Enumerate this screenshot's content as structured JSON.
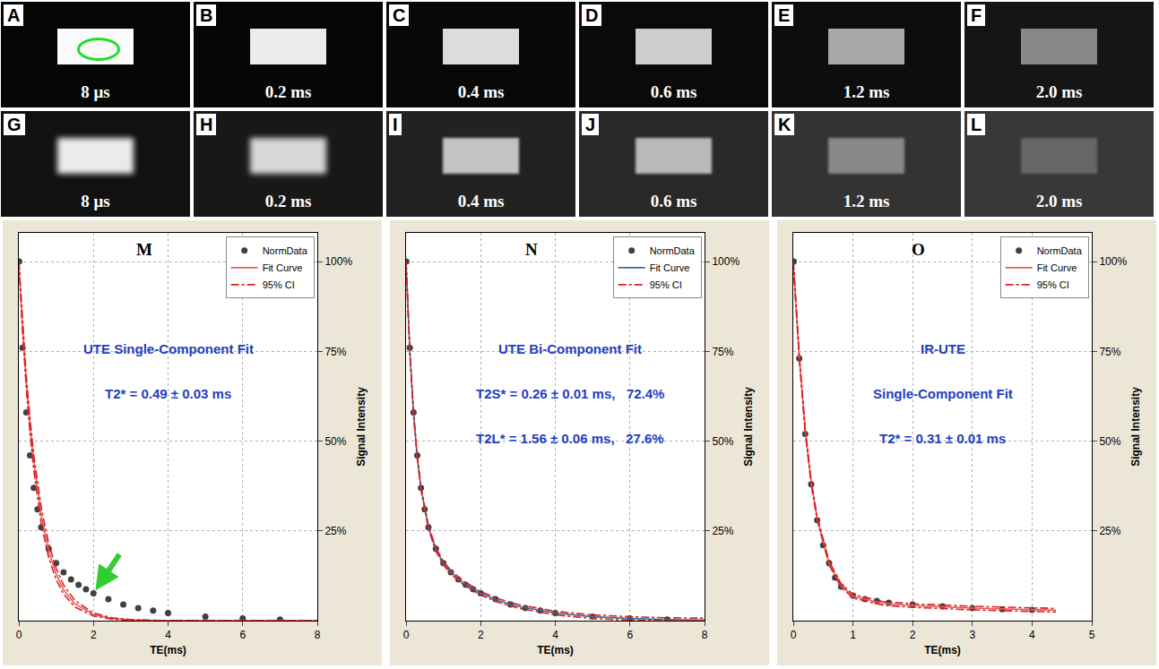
{
  "images": [
    {
      "panel": "A",
      "te": "8 μs"
    },
    {
      "panel": "B",
      "te": "0.2 ms"
    },
    {
      "panel": "C",
      "te": "0.4 ms"
    },
    {
      "panel": "D",
      "te": "0.6 ms"
    },
    {
      "panel": "E",
      "te": "1.2 ms"
    },
    {
      "panel": "F",
      "te": "2.0 ms"
    },
    {
      "panel": "G",
      "te": "8 μs"
    },
    {
      "panel": "H",
      "te": "0.2 ms"
    },
    {
      "panel": "I",
      "te": "0.4 ms"
    },
    {
      "panel": "J",
      "te": "0.6 ms"
    },
    {
      "panel": "K",
      "te": "1.2 ms"
    },
    {
      "panel": "L",
      "te": "2.0 ms"
    }
  ],
  "chart_data": [
    {
      "type": "scatter",
      "panel": "M",
      "annotations": [
        "UTE Single-Component Fit",
        "T2* = 0.49 ± 0.03 ms"
      ],
      "x_label": "TE(ms)",
      "y_label": "Signal Intensity",
      "xlim": [
        0,
        8
      ],
      "xticks": [
        0,
        2,
        4,
        6,
        8
      ],
      "ylim": [
        0,
        108
      ],
      "yticks": [
        {
          "value": 25,
          "label": "25%"
        },
        {
          "value": 50,
          "label": "50%"
        },
        {
          "value": 75,
          "label": "75%"
        },
        {
          "value": 100,
          "label": "100%"
        }
      ],
      "grid": true,
      "legend": "top right",
      "series": [
        {
          "name": "NormData",
          "type": "scatter",
          "marker": "circle",
          "color": "#404040",
          "x": [
            0.008,
            0.1,
            0.2,
            0.3,
            0.4,
            0.5,
            0.6,
            0.8,
            1.0,
            1.2,
            1.4,
            1.6,
            1.8,
            2.0,
            2.4,
            2.8,
            3.2,
            3.6,
            4.0,
            5.0,
            6.0,
            7.0
          ],
          "values": [
            100,
            76,
            58,
            46,
            37,
            31,
            26,
            20,
            16,
            13.5,
            11.5,
            10,
            8.7,
            7.6,
            6,
            4.5,
            3.5,
            2.8,
            2.1,
            1.1,
            0.6,
            0.3
          ]
        },
        {
          "name": "Fit Curve",
          "type": "line",
          "line_style": "solid",
          "color": "#e06060",
          "x": [
            0,
            0.1,
            0.2,
            0.3,
            0.4,
            0.6,
            0.8,
            1.0,
            1.2,
            1.5,
            2,
            2.5,
            3,
            4,
            5,
            6,
            7,
            8
          ],
          "values": [
            100,
            81.5,
            66.5,
            54.2,
            44.2,
            29.4,
            19.5,
            13.0,
            8.6,
            4.7,
            1.7,
            0.6,
            0.2,
            0,
            0,
            0,
            0,
            0
          ]
        },
        {
          "name": "95% CI",
          "type": "line",
          "line_style": "dashdot",
          "color": "#e02020",
          "x": [
            0,
            0.1,
            0.2,
            0.3,
            0.4,
            0.6,
            0.8,
            1.0,
            1.2,
            1.5,
            2,
            2.5,
            3,
            4,
            5,
            6,
            7,
            8
          ],
          "values": [
            100,
            82.5,
            68.1,
            56.2,
            46.3,
            31.5,
            21.5,
            14.6,
            9.9,
            5.6,
            2.1,
            0.8,
            0.3,
            0,
            0,
            0,
            0,
            0
          ]
        },
        {
          "name": "95% CI",
          "type": "line",
          "line_style": "dashdot",
          "color": "#e02020",
          "x": [
            0,
            0.1,
            0.2,
            0.3,
            0.4,
            0.6,
            0.8,
            1.0,
            1.2,
            1.5,
            2,
            2.5,
            3,
            4,
            5,
            6,
            7,
            8
          ],
          "values": [
            100,
            80.5,
            64.7,
            52.1,
            41.9,
            27.1,
            17.6,
            11.4,
            7.4,
            3.8,
            1.3,
            0.4,
            0.1,
            0,
            0,
            0,
            0,
            0
          ]
        }
      ]
    },
    {
      "type": "scatter",
      "panel": "N",
      "annotations": [
        "UTE Bi-Component Fit",
        "T2S* = 0.26 ± 0.01 ms,   72.4%",
        "T2L* = 1.56 ± 0.06 ms,   27.6%"
      ],
      "x_label": "TE(ms)",
      "y_label": "Signal Intensity",
      "xlim": [
        0,
        8
      ],
      "xticks": [
        0,
        2,
        4,
        6,
        8
      ],
      "ylim": [
        0,
        108
      ],
      "yticks": [
        {
          "value": 25,
          "label": "25%"
        },
        {
          "value": 50,
          "label": "50%"
        },
        {
          "value": 75,
          "label": "75%"
        },
        {
          "value": 100,
          "label": "100%"
        }
      ],
      "grid": true,
      "legend": "top right",
      "series": [
        {
          "name": "NormData",
          "type": "scatter",
          "marker": "circle",
          "color": "#404040",
          "x": [
            0.008,
            0.1,
            0.2,
            0.3,
            0.4,
            0.5,
            0.6,
            0.8,
            1.0,
            1.2,
            1.4,
            1.6,
            1.8,
            2.0,
            2.4,
            2.8,
            3.2,
            3.6,
            4.0,
            5.0,
            6.0,
            7.0
          ],
          "values": [
            100,
            76,
            58,
            46,
            37,
            31,
            26,
            20,
            16,
            13.5,
            11.5,
            10,
            8.7,
            7.6,
            6,
            4.5,
            3.5,
            2.8,
            2.1,
            1.1,
            0.6,
            0.3
          ]
        },
        {
          "name": "Fit Curve",
          "type": "line",
          "line_style": "solid",
          "color": "#3070a0",
          "x": [
            0,
            0.1,
            0.2,
            0.3,
            0.4,
            0.6,
            0.8,
            1.0,
            1.2,
            1.5,
            2,
            2.5,
            3,
            4,
            5,
            6,
            7,
            8
          ],
          "values": [
            100,
            75.2,
            57.8,
            45.6,
            36.9,
            26.0,
            19.8,
            16.0,
            13.5,
            10.8,
            7.6,
            5.5,
            4.0,
            2.1,
            1.1,
            0.6,
            0.3,
            0.2
          ]
        },
        {
          "name": "95% CI",
          "type": "line",
          "line_style": "dashdot",
          "color": "#e02020",
          "x": [
            0,
            0.1,
            0.2,
            0.3,
            0.4,
            0.6,
            0.8,
            1.0,
            1.2,
            1.5,
            2,
            2.5,
            3,
            4,
            5,
            6,
            7,
            8
          ],
          "values": [
            100,
            75.7,
            58.3,
            46.1,
            37.4,
            26.5,
            20.3,
            16.5,
            14.0,
            11.3,
            8.1,
            6.0,
            4.5,
            2.6,
            1.6,
            1.1,
            0.8,
            0.7
          ]
        },
        {
          "name": "95% CI",
          "type": "line",
          "line_style": "dashdot",
          "color": "#e02020",
          "x": [
            0,
            0.1,
            0.2,
            0.3,
            0.4,
            0.6,
            0.8,
            1.0,
            1.2,
            1.5,
            2,
            2.5,
            3,
            4,
            5,
            6,
            7,
            8
          ],
          "values": [
            100,
            74.7,
            57.3,
            45.1,
            36.4,
            25.5,
            19.3,
            15.5,
            13.0,
            10.3,
            7.1,
            5.0,
            3.5,
            1.6,
            0.6,
            0.1,
            0,
            0
          ]
        }
      ]
    },
    {
      "type": "scatter",
      "panel": "O",
      "annotations": [
        "IR-UTE",
        "Single-Component Fit",
        "T2* = 0.31 ± 0.01 ms"
      ],
      "x_label": "TE(ms)",
      "y_label": "Signal Intensity",
      "xlim": [
        0,
        5
      ],
      "xticks": [
        0,
        1,
        2,
        3,
        4,
        5
      ],
      "ylim": [
        0,
        108
      ],
      "yticks": [
        {
          "value": 25,
          "label": "25%"
        },
        {
          "value": 50,
          "label": "50%"
        },
        {
          "value": 75,
          "label": "75%"
        },
        {
          "value": 100,
          "label": "100%"
        }
      ],
      "grid": true,
      "legend": "top right",
      "series": [
        {
          "name": "NormData",
          "type": "scatter",
          "marker": "circle",
          "color": "#404040",
          "x": [
            0.008,
            0.1,
            0.2,
            0.3,
            0.4,
            0.5,
            0.6,
            0.7,
            0.8,
            1.0,
            1.2,
            1.4,
            1.6,
            2.0,
            2.5,
            3.0,
            3.5,
            4.0
          ],
          "values": [
            100,
            73,
            52,
            38,
            28,
            21,
            16,
            12,
            9.5,
            7,
            6,
            5.5,
            5,
            4.5,
            4,
            3.5,
            3.2,
            3
          ]
        },
        {
          "name": "Fit Curve",
          "type": "line",
          "line_style": "solid",
          "color": "#e06060",
          "x": [
            0,
            0.1,
            0.2,
            0.3,
            0.4,
            0.6,
            0.8,
            1.0,
            1.5,
            2,
            3,
            4,
            4.4
          ],
          "values": [
            100,
            73.5,
            53,
            38.5,
            28.5,
            16,
            9.8,
            6.8,
            4.8,
            4.2,
            3.5,
            3.0,
            2.9
          ]
        },
        {
          "name": "95% CI",
          "type": "line",
          "line_style": "dashdot",
          "color": "#e02020",
          "x": [
            0,
            0.1,
            0.2,
            0.3,
            0.4,
            0.6,
            0.8,
            1.0,
            1.5,
            2,
            3,
            4,
            4.4
          ],
          "values": [
            100,
            74,
            53.5,
            39,
            29,
            16.5,
            10.3,
            7.3,
            5.3,
            4.7,
            4.0,
            3.5,
            3.4
          ]
        },
        {
          "name": "95% CI",
          "type": "line",
          "line_style": "dashdot",
          "color": "#e02020",
          "x": [
            0,
            0.1,
            0.2,
            0.3,
            0.4,
            0.6,
            0.8,
            1.0,
            1.5,
            2,
            3,
            4,
            4.4
          ],
          "values": [
            100,
            73,
            52.5,
            38,
            28,
            15.5,
            9.3,
            6.3,
            4.3,
            3.7,
            3.0,
            2.5,
            2.4
          ]
        }
      ]
    }
  ]
}
